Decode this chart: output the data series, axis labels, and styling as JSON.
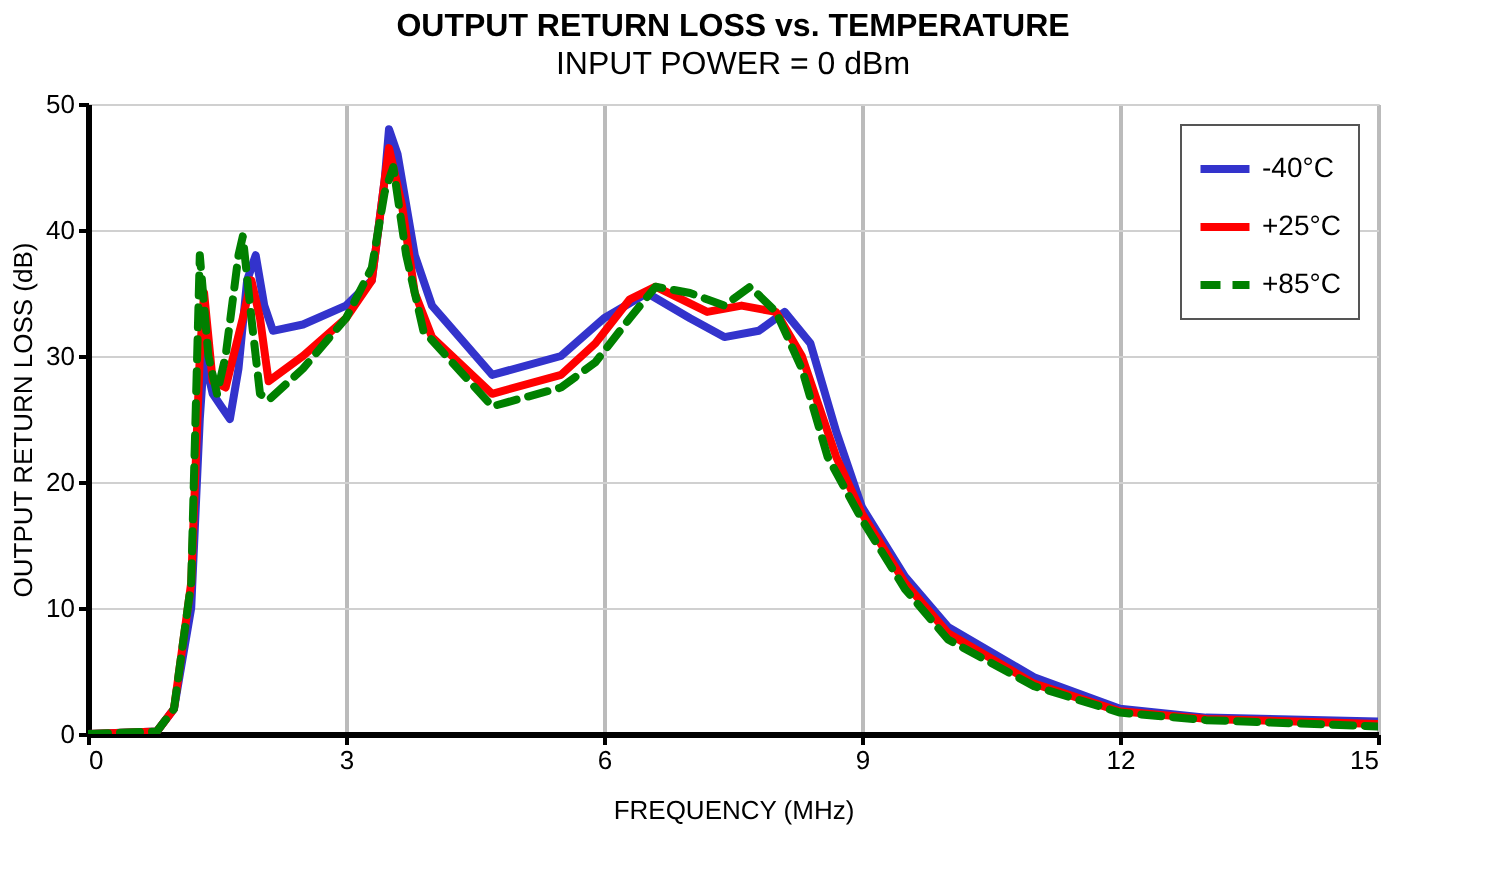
{
  "chart_data": {
    "type": "line",
    "title": "OUTPUT RETURN LOSS vs. TEMPERATURE",
    "subtitle": "INPUT POWER = 0 dBm",
    "xlabel": "FREQUENCY (MHz)",
    "ylabel": "OUTPUT RETURN LOSS (dB)",
    "xlim": [
      0,
      15
    ],
    "xticks": [
      0,
      3,
      6,
      9,
      12,
      15
    ],
    "ylim": [
      0,
      50
    ],
    "yticks": [
      0,
      10,
      20,
      30,
      40,
      50
    ],
    "grid": true,
    "legend": "top right",
    "marker": "none",
    "series": [
      {
        "name": "-40°C",
        "color": "#3333cc",
        "line_style": "solid",
        "x": [
          0,
          0.8,
          1.0,
          1.2,
          1.3,
          1.35,
          1.45,
          1.55,
          1.65,
          1.75,
          1.85,
          1.95,
          2.05,
          2.15,
          2.5,
          3.0,
          3.3,
          3.45,
          3.5,
          3.6,
          3.8,
          4.0,
          4.7,
          5.5,
          6.0,
          6.5,
          7.0,
          7.4,
          7.8,
          8.1,
          8.4,
          8.7,
          9.0,
          9.5,
          10,
          11,
          12,
          13,
          15
        ],
        "values": [
          0,
          0.2,
          2,
          10,
          25,
          30,
          27,
          26,
          25,
          29,
          36,
          38,
          34,
          32,
          32.5,
          34,
          36,
          44,
          48,
          46,
          38,
          34,
          28.5,
          30,
          33,
          35,
          33,
          31.5,
          32,
          33.5,
          31,
          24,
          18,
          12.5,
          8.5,
          4.5,
          2,
          1.3,
          1.0
        ]
      },
      {
        "name": "+25°C",
        "color": "#ff0000",
        "line_style": "solid",
        "x": [
          0,
          0.8,
          1.0,
          1.2,
          1.3,
          1.35,
          1.45,
          1.6,
          1.8,
          1.9,
          2.0,
          2.1,
          2.5,
          3.0,
          3.3,
          3.45,
          3.5,
          3.65,
          3.8,
          4.0,
          4.7,
          5.5,
          5.9,
          6.3,
          6.6,
          7.2,
          7.6,
          8.0,
          8.3,
          8.7,
          9.0,
          9.5,
          10,
          11,
          12,
          13,
          15
        ],
        "values": [
          0,
          0.2,
          2,
          12,
          30,
          35,
          28,
          27.5,
          33,
          36,
          33,
          28,
          30,
          33,
          36,
          44,
          46.5,
          42,
          35,
          31.5,
          27,
          28.5,
          31,
          34.5,
          35.5,
          33.5,
          34,
          33.5,
          30,
          22,
          17.5,
          12,
          8,
          4,
          1.8,
          1.2,
          0.8
        ]
      },
      {
        "name": "+85°C",
        "color": "#008000",
        "line_style": "dashed",
        "x": [
          0,
          0.8,
          1.0,
          1.2,
          1.3,
          1.4,
          1.5,
          1.6,
          1.75,
          1.8,
          1.9,
          2.0,
          2.1,
          2.5,
          3.0,
          3.3,
          3.45,
          3.55,
          3.7,
          3.9,
          4.7,
          5.5,
          5.9,
          6.3,
          6.6,
          7.0,
          7.4,
          7.7,
          8.0,
          8.3,
          8.6,
          9.0,
          9.5,
          10,
          11,
          12,
          13,
          15
        ],
        "values": [
          0,
          0.2,
          2,
          12,
          38,
          30,
          27,
          30,
          38,
          39.5,
          33,
          27,
          26.5,
          29,
          33,
          37,
          43,
          45,
          38,
          32,
          26,
          27.5,
          29.5,
          33,
          35.5,
          35,
          34,
          35.5,
          33.5,
          29,
          22,
          17,
          11.5,
          7.5,
          3.8,
          1.7,
          1.1,
          0.6
        ]
      }
    ]
  }
}
